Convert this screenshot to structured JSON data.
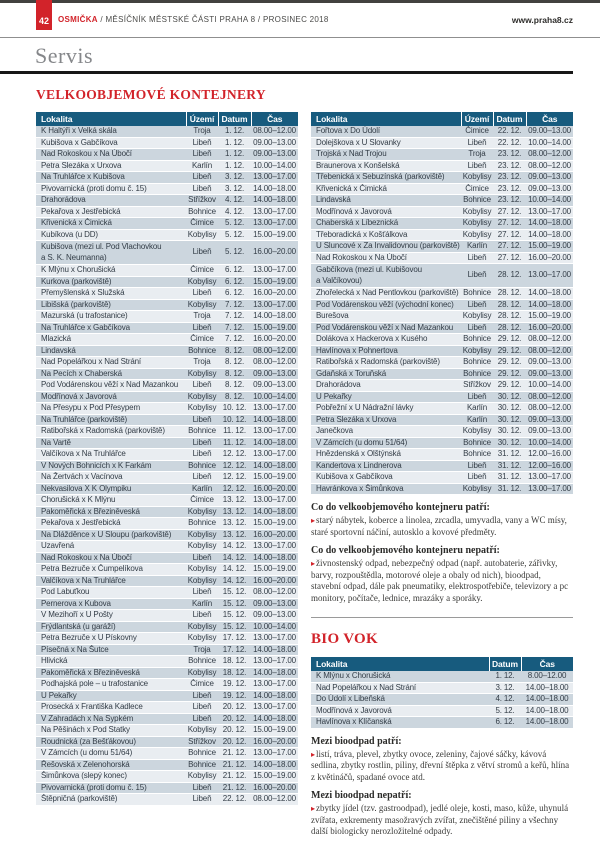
{
  "page": {
    "number": "42",
    "masthead_brand": "OSMIČKA",
    "masthead_rest": "/ MĚSÍČNÍK MĚSTSKÉ ČÁSTI PRAHA 8 / PROSINEC 2018",
    "website": "www.praha8.cz",
    "section": "Servis"
  },
  "colors": {
    "accent_red": "#d2232a",
    "table_header_blue": "#175b7e",
    "row_odd": "#ccd6de",
    "row_even": "#e9edf1"
  },
  "vok": {
    "title": "VELKOOBJEMOVÉ KONTEJNERY",
    "columns": [
      "Lokalita",
      "Území",
      "Datum",
      "Čas"
    ],
    "rows_left": [
      [
        "K Haltýři x Velká skála",
        "Troja",
        "1. 12.",
        "08.00–12.00"
      ],
      [
        "Kubišova x Gabčíkova",
        "Libeň",
        "1. 12.",
        "09.00–13.00"
      ],
      [
        "Nad Rokoskou x Na Úbočí",
        "Libeň",
        "1. 12.",
        "09.00–13.00"
      ],
      [
        "Petra Slezáka x Urxova",
        "Karlín",
        "1. 12.",
        "10.00–14.00"
      ],
      [
        "Na Truhlářce x Kubišova",
        "Libeň",
        "3. 12.",
        "13.00–17.00"
      ],
      [
        "Pivovarnická (proti domu č. 15)",
        "Libeň",
        "3. 12.",
        "14.00–18.00"
      ],
      [
        "Drahorádova",
        "Střížkov",
        "4. 12.",
        "14.00–18.00"
      ],
      [
        "Pekařova x Jestřebická",
        "Bohnice",
        "4. 12.",
        "13.00–17.00"
      ],
      [
        "Křivenická x Čimická",
        "Čimice",
        "5. 12.",
        "13.00–17.00"
      ],
      [
        "Kubíkova (u DD)",
        "Kobylisy",
        "5. 12.",
        "15.00–19.00"
      ],
      [
        "Kubišova (mezi ul. Pod Vlachovkou\na S. K. Neumanna)",
        "Libeň",
        "5. 12.",
        "16.00–20.00"
      ],
      [
        "K Mlýnu x Chorušická",
        "Čimice",
        "6. 12.",
        "13.00–17.00"
      ],
      [
        "Kurkova (parkoviště)",
        "Kobylisy",
        "6. 12.",
        "15.00–19.00"
      ],
      [
        "Přemyšlenská x Služská",
        "Libeň",
        "6. 12.",
        "16.00–20.00"
      ],
      [
        "Libišská (parkoviště)",
        "Kobylisy",
        "7. 12.",
        "13.00–17.00"
      ],
      [
        "Mazurská (u trafostanice)",
        "Troja",
        "7. 12.",
        "14.00–18.00"
      ],
      [
        "Na Truhlářce x Gabčíkova",
        "Libeň",
        "7. 12.",
        "15.00–19.00"
      ],
      [
        "Mlazická",
        "Čimice",
        "7. 12.",
        "16.00–20.00"
      ],
      [
        "Lindavská",
        "Bohnice",
        "8. 12.",
        "08.00–12.00"
      ],
      [
        "Nad Popelářkou x Nad Strání",
        "Troja",
        "8. 12.",
        "08.00–12.00"
      ],
      [
        "Na Pecích x Chaberská",
        "Kobylisy",
        "8. 12.",
        "09.00–13.00"
      ],
      [
        "Pod Vodárenskou věží x Nad Mazankou",
        "Libeň",
        "8. 12.",
        "09.00–13.00"
      ],
      [
        "Modřínová x Javorová",
        "Kobylisy",
        "8. 12.",
        "10.00–14.00"
      ],
      [
        "Na Přesypu x Pod Přesypem",
        "Kobylisy",
        "10. 12.",
        "13.00–17.00"
      ],
      [
        "Na Truhlářce (parkoviště)",
        "Libeň",
        "10. 12.",
        "14.00–18.00"
      ],
      [
        "Ratibořská x Radomská (parkoviště)",
        "Bohnice",
        "11. 12.",
        "13.00–17.00"
      ],
      [
        "Na Vartě",
        "Libeň",
        "11. 12.",
        "14.00–18.00"
      ],
      [
        "Valčíkova x Na Truhlářce",
        "Libeň",
        "12. 12.",
        "13.00–17.00"
      ],
      [
        "V Nových Bohnicích x K Farkám",
        "Bohnice",
        "12. 12.",
        "14.00–18.00"
      ],
      [
        "Na Žertvách x Vacínova",
        "Libeň",
        "12. 12.",
        "15.00–19.00"
      ],
      [
        "Nekvasilova X K Olympiku",
        "Karlín",
        "12. 12.",
        "16.00–20.00"
      ],
      [
        "Chorušická x K Mlýnu",
        "Čimice",
        "13. 12.",
        "13.00–17.00"
      ],
      [
        "Pakoměřická x Březiněveská",
        "Kobylisy",
        "13. 12.",
        "14.00–18.00"
      ],
      [
        "Pekařova x Jestřebická",
        "Bohnice",
        "13. 12.",
        "15.00–19.00"
      ],
      [
        "Na Dlážděnce x U Sloupu (parkoviště)",
        "Kobylisy",
        "13. 12.",
        "16.00–20.00"
      ],
      [
        "Uzavřená",
        "Kobylisy",
        "14. 12.",
        "13.00–17.00"
      ],
      [
        "Nad Rokoskou x Na Úbočí",
        "Libeň",
        "14. 12.",
        "14.00–18.00"
      ],
      [
        "Petra Bezruče x Čumpelíkova",
        "Kobylisy",
        "14. 12.",
        "15.00–19.00"
      ],
      [
        "Valčíkova x Na Truhlářce",
        "Kobylisy",
        "14. 12.",
        "16.00–20.00"
      ],
      [
        "Pod Labuťkou",
        "Libeň",
        "15. 12.",
        "08.00–12.00"
      ],
      [
        "Pernerova x Kubova",
        "Karlín",
        "15. 12.",
        "09.00–13.00"
      ],
      [
        "V Mezihoří x U Pošty",
        "Libeň",
        "15. 12.",
        "09.00–13.00"
      ],
      [
        "Frýdlantská (u garáží)",
        "Kobylisy",
        "15. 12.",
        "10.00–14.00"
      ],
      [
        "Petra Bezruče x U Pískovny",
        "Kobylisy",
        "17. 12.",
        "13.00–17.00"
      ],
      [
        "Písečná x Na Šutce",
        "Troja",
        "17. 12.",
        "14.00–18.00"
      ],
      [
        "Hlivická",
        "Bohnice",
        "18. 12.",
        "13.00–17.00"
      ],
      [
        "Pakoměřická x Březiněveská",
        "Kobylisy",
        "18. 12.",
        "14.00–18.00"
      ],
      [
        "Podhajská pole – u trafostanice",
        "Čimice",
        "19. 12.",
        "13.00–17.00"
      ],
      [
        "U Pekařky",
        "Libeň",
        "19. 12.",
        "14.00–18.00"
      ],
      [
        "Prosecká x Františka Kadlece",
        "Libeň",
        "20. 12.",
        "13.00–17.00"
      ],
      [
        "V Zahradách x Na Sypkém",
        "Libeň",
        "20. 12.",
        "14.00–18.00"
      ],
      [
        "Na Pěšinách x Pod Statky",
        "Kobylisy",
        "20. 12.",
        "15.00–19.00"
      ],
      [
        "Roudnická (za Bešťákovou)",
        "Střížkov",
        "20. 12.",
        "16.00–20.00"
      ],
      [
        "V Zámcích (u domu 51/64)",
        "Bohnice",
        "21. 12.",
        "13.00–17.00"
      ],
      [
        "Řešovská x Zelenohorská",
        "Bohnice",
        "21. 12.",
        "14.00–18.00"
      ],
      [
        "Šimůnkova (slepý konec)",
        "Kobylisy",
        "21. 12.",
        "15.00–19.00"
      ],
      [
        "Pivovarnická (proti domu č. 15)",
        "Libeň",
        "21. 12.",
        "16.00–20.00"
      ],
      [
        "Štěpničná (parkoviště)",
        "Libeň",
        "22. 12.",
        "08.00–12.00"
      ]
    ],
    "rows_right": [
      [
        "Fořtova x Do Údolí",
        "Čimice",
        "22. 12.",
        "09.00–13.00"
      ],
      [
        "Dolejškova x U Slovanky",
        "Libeň",
        "22. 12.",
        "10.00–14.00"
      ],
      [
        "Trojská x Nad Trojou",
        "Troja",
        "23. 12.",
        "08.00–12.00"
      ],
      [
        "Braunerova x Konšelská",
        "Libeň",
        "23. 12.",
        "08.00–12.00"
      ],
      [
        "Třebenická x Sebuzínská (parkoviště)",
        "Kobylisy",
        "23. 12.",
        "09.00–13.00"
      ],
      [
        "Křivenická x Čimická",
        "Čimice",
        "23. 12.",
        "09.00–13.00"
      ],
      [
        "Lindavská",
        "Bohnice",
        "23. 12.",
        "10.00–14.00"
      ],
      [
        "Modřínová x Javorová",
        "Kobylisy",
        "27. 12.",
        "13.00–17.00"
      ],
      [
        "Chaberská x Líbeznická",
        "Kobylisy",
        "27. 12.",
        "14.00–18.00"
      ],
      [
        "Třeboradická x Košťálkova",
        "Kobylisy",
        "27. 12.",
        "14.00–18.00"
      ],
      [
        "U Sluncové x Za Invalidovnou (parkoviště)",
        "Karlín",
        "27. 12.",
        "15.00–19.00"
      ],
      [
        "Nad Rokoskou x Na Úbočí",
        "Libeň",
        "27. 12.",
        "16.00–20.00"
      ],
      [
        "Gabčíkova (mezi ul. Kubišovou\na Valčíkovou)",
        "Libeň",
        "28. 12.",
        "13.00–17.00"
      ],
      [
        "Zhořelecká x Nad Pentlovkou (parkoviště)",
        "Bohnice",
        "28. 12.",
        "14.00–18.00"
      ],
      [
        "Pod Vodárenskou věží (východní konec)",
        "Libeň",
        "28. 12.",
        "14.00–18.00"
      ],
      [
        "Burešova",
        "Kobylisy",
        "28. 12.",
        "15.00–19.00"
      ],
      [
        "Pod Vodárenskou věží x Nad Mazankou",
        "Libeň",
        "28. 12.",
        "16.00–20.00"
      ],
      [
        "Dolákova x Hackerova x Kusého",
        "Bohnice",
        "29. 12.",
        "08.00–12.00"
      ],
      [
        "Havlínova x Pohnertova",
        "Kobylisy",
        "29. 12.",
        "08.00–12.00"
      ],
      [
        "Ratibořská x Radomská (parkoviště)",
        "Bohnice",
        "29. 12.",
        "09.00–13.00"
      ],
      [
        "Gdaňská x Toruňská",
        "Bohnice",
        "29. 12.",
        "09.00–13.00"
      ],
      [
        "Drahorádova",
        "Střížkov",
        "29. 12.",
        "10.00–14.00"
      ],
      [
        "U Pekařky",
        "Libeň",
        "30. 12.",
        "08.00–12.00"
      ],
      [
        "Pobřežní x U Nádražní lávky",
        "Karlín",
        "30. 12.",
        "08.00–12.00"
      ],
      [
        "Petra Slezáka x Urxova",
        "Karlín",
        "30. 12.",
        "09.00–13.00"
      ],
      [
        "Janečkova",
        "Kobylisy",
        "30. 12.",
        "09.00–13.00"
      ],
      [
        "V Zámcích (u domu 51/64)",
        "Bohnice",
        "30. 12.",
        "10.00–14.00"
      ],
      [
        "Hnězdenská x Olštýnská",
        "Bohnice",
        "31. 12.",
        "12.00–16.00"
      ],
      [
        "Kandertova x Lindnerova",
        "Libeň",
        "31. 12.",
        "12.00–16.00"
      ],
      [
        "Kubišova x Gabčíkova",
        "Libeň",
        "31. 12.",
        "13.00–17.00"
      ],
      [
        "Havránkova x Šimůnkova",
        "Kobylisy",
        "31. 12.",
        "13.00–17.00"
      ]
    ],
    "patri_heading": "Co do velkoobjemového kontejneru patří:",
    "patri_bullet": "▸",
    "patri_text": "starý nábytek, koberce a linolea, zrcadla, umyvadla, vany a WC mísy, staré sportovní náčiní, autosklo a kovové předměty.",
    "nepatri_heading": "Co do velkoobjemového kontejneru nepatří:",
    "nepatri_bullet": "▸",
    "nepatri_text": "živnostenský odpad, nebezpečný odpad (např. autobaterie, zářivky, barvy, rozpouštědla, motorové oleje a obaly od nich), bioodpad, stavební odpad, dále pak pneumatiky, elektrospotřebiče, televizory a pc monitory, počítače, lednice, mrazáky a sporáky."
  },
  "biovok": {
    "title": "BIO VOK",
    "columns": [
      "Lokalita",
      "Datum",
      "Čas"
    ],
    "rows": [
      [
        "K Mlýnu x Chorušická",
        "1. 12.",
        "8.00–12.00"
      ],
      [
        "Nad Popelářkou x Nad Strání",
        "3. 12.",
        "14.00–18.00"
      ],
      [
        "Do Údolí x Libeňská",
        "4. 12.",
        "14.00–18.00"
      ],
      [
        "Modřínová x Javorová",
        "5. 12.",
        "14.00–18.00"
      ],
      [
        "Havlínova x Klíčanská",
        "6. 12.",
        "14.00–18.00"
      ]
    ],
    "patri_heading": "Mezi bioodpad patří:",
    "patri_bullet": "▸",
    "patri_text": "listí, tráva, plevel, zbytky ovoce, zeleniny, čajové sáčky, kávová sedlina, zbytky rostlin, piliny, dřevní štěpka z větví stromů a keřů, hlína z květináčů, spadané ovoce atd.",
    "nepatri_heading": "Mezi bioodpad nepatří:",
    "nepatri_bullet": "▸",
    "nepatri_text": "zbytky jídel (tzv. gastroodpad), jedlé oleje, kosti, maso, kůže, uhynulá zvířata, exkrementy masožravých zvířat, znečištěné piliny a všechny další biologicky nerozložitelné odpady."
  }
}
